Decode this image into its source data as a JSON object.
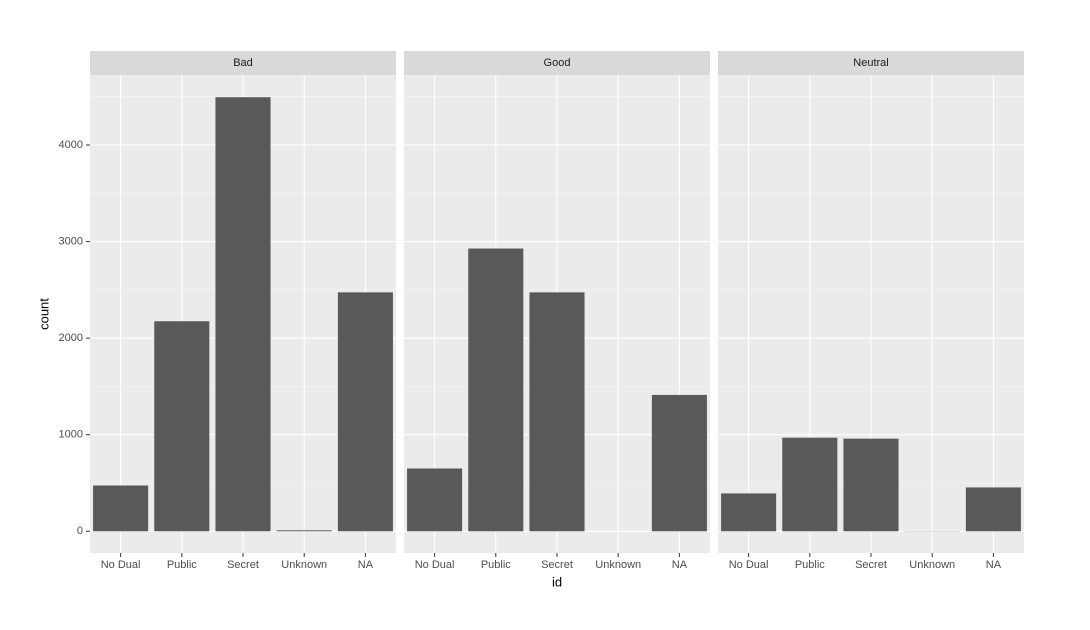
{
  "chart_data": [
    {
      "type": "bar",
      "title": "Bad",
      "ylabel": "count",
      "categories": [
        "No Dual",
        "Public",
        "Secret",
        "Unknown",
        "NA"
      ],
      "values": [
        474,
        2175,
        4495,
        10,
        2474
      ],
      "color": "#595959",
      "ylim": [
        -225,
        4725
      ],
      "yticks": [
        0,
        1000,
        2000,
        3000,
        4000
      ],
      "minor_yticks": [
        500,
        1500,
        2500,
        3500,
        4500
      ],
      "grid": true
    },
    {
      "type": "bar",
      "title": "Good",
      "xlabel": "id",
      "categories": [
        "No Dual",
        "Public",
        "Secret",
        "Unknown",
        "NA"
      ],
      "values": [
        650,
        2928,
        2474,
        0,
        1412
      ],
      "color": "#595959",
      "ylim": [
        -225,
        4725
      ],
      "yticks": [
        0,
        1000,
        2000,
        3000,
        4000
      ],
      "minor_yticks": [
        500,
        1500,
        2500,
        3500,
        4500
      ],
      "grid": true
    },
    {
      "type": "bar",
      "title": "Neutral",
      "categories": [
        "No Dual",
        "Public",
        "Secret",
        "Unknown",
        "NA"
      ],
      "values": [
        392,
        969,
        959,
        2,
        454
      ],
      "color": "#595959",
      "ylim": [
        -225,
        4725
      ],
      "yticks": [
        0,
        1000,
        2000,
        3000,
        4000
      ],
      "minor_yticks": [
        500,
        1500,
        2500,
        3500,
        4500
      ],
      "grid": true
    }
  ]
}
